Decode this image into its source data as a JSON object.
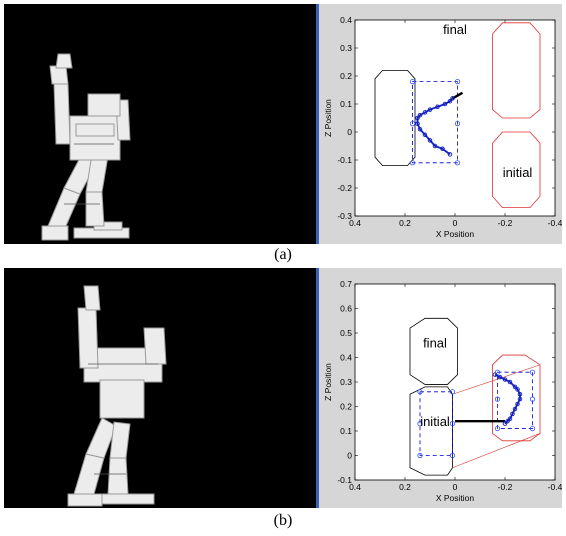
{
  "captions": [
    "(a)",
    "(b)"
  ],
  "chart_data": [
    {
      "type": "scatter",
      "xlabel": "X Position",
      "ylabel": "Z Position",
      "xlim": [
        0.4,
        -0.4
      ],
      "ylim": [
        -0.3,
        0.4
      ],
      "xticks": [
        "0.4",
        "0.2",
        "0",
        "-0.2",
        "-0.4"
      ],
      "yticks": [
        "-0.3",
        "-0.2",
        "-0.1",
        "0",
        "0.1",
        "0.2",
        "0.3",
        "0.4"
      ],
      "annotations": [
        "final",
        "initial"
      ],
      "trajectory": {
        "x": [
          0.02,
          0.05,
          0.08,
          0.1,
          0.12,
          0.14,
          0.15,
          0.15,
          0.14,
          0.12,
          0.1,
          0.07,
          0.04,
          0.02,
          0.01
        ],
        "z": [
          -0.08,
          -0.06,
          -0.05,
          -0.03,
          -0.01,
          0.01,
          0.03,
          0.05,
          0.06,
          0.07,
          0.08,
          0.09,
          0.1,
          0.11,
          0.12
        ]
      },
      "line_segment": {
        "x": [
          0.01,
          -0.03
        ],
        "z": [
          0.12,
          0.14
        ]
      },
      "regions": [
        {
          "label": "",
          "color": "#000000",
          "points": [
            [
              0.29,
              0.22
            ],
            [
              0.19,
              0.22
            ],
            [
              0.16,
              0.19
            ],
            [
              0.16,
              -0.09
            ],
            [
              0.19,
              -0.12
            ],
            [
              0.29,
              -0.12
            ],
            [
              0.32,
              -0.09
            ],
            [
              0.32,
              0.19
            ]
          ]
        },
        {
          "label": "final",
          "color": "#e03030",
          "points": [
            [
              -0.19,
              0.39
            ],
            [
              -0.3,
              0.39
            ],
            [
              -0.34,
              0.35
            ],
            [
              -0.34,
              0.08
            ],
            [
              -0.3,
              0.05
            ],
            [
              -0.19,
              0.05
            ],
            [
              -0.15,
              0.08
            ],
            [
              -0.15,
              0.35
            ]
          ]
        },
        {
          "label": "initial",
          "color": "#e03030",
          "points": [
            [
              -0.19,
              0.0
            ],
            [
              -0.3,
              0.0
            ],
            [
              -0.34,
              -0.04
            ],
            [
              -0.34,
              -0.23
            ],
            [
              -0.3,
              -0.27
            ],
            [
              -0.19,
              -0.27
            ],
            [
              -0.15,
              -0.23
            ],
            [
              -0.15,
              -0.04
            ]
          ]
        }
      ],
      "dashed_box": {
        "color": "#0000d0",
        "x": [
          0.17,
          -0.01
        ],
        "z": [
          -0.11,
          0.18
        ]
      },
      "markers": [
        [
          0.17,
          0.18
        ],
        [
          -0.01,
          0.18
        ],
        [
          0.17,
          -0.11
        ],
        [
          -0.01,
          -0.11
        ],
        [
          0.17,
          0.03
        ],
        [
          -0.01,
          0.03
        ]
      ],
      "colors": {
        "trajectory": "#1020c0",
        "marker": "#3050ff"
      }
    },
    {
      "type": "scatter",
      "xlabel": "X Position",
      "ylabel": "Z Position",
      "xlim": [
        0.4,
        -0.4
      ],
      "ylim": [
        -0.1,
        0.7
      ],
      "xticks": [
        "0.4",
        "0.2",
        "0",
        "-0.2",
        "-0.4"
      ],
      "yticks": [
        "-0.1",
        "0",
        "0.1",
        "0.2",
        "0.3",
        "0.4",
        "0.5",
        "0.6",
        "0.7"
      ],
      "annotations": [
        "final",
        "initial"
      ],
      "trajectory": {
        "x": [
          -0.16,
          -0.18,
          -0.2,
          -0.22,
          -0.24,
          -0.25,
          -0.26,
          -0.26,
          -0.25,
          -0.24,
          -0.23,
          -0.22,
          -0.21,
          -0.2
        ],
        "z": [
          0.33,
          0.32,
          0.31,
          0.3,
          0.28,
          0.27,
          0.25,
          0.23,
          0.21,
          0.19,
          0.17,
          0.15,
          0.14,
          0.13
        ]
      },
      "line_segment": {
        "x": [
          0.0,
          -0.2
        ],
        "z": [
          0.14,
          0.14
        ]
      },
      "regions": [
        {
          "label": "final",
          "color": "#000000",
          "points": [
            [
              0.12,
              0.56
            ],
            [
              0.03,
              0.56
            ],
            [
              -0.01,
              0.52
            ],
            [
              -0.01,
              0.33
            ],
            [
              0.03,
              0.29
            ],
            [
              0.12,
              0.29
            ],
            [
              0.18,
              0.33
            ],
            [
              0.18,
              0.52
            ]
          ]
        },
        {
          "label": "initial",
          "color": "#000000",
          "points": [
            [
              0.12,
              0.28
            ],
            [
              0.03,
              0.28
            ],
            [
              0.01,
              0.25
            ],
            [
              0.01,
              -0.05
            ],
            [
              0.03,
              -0.08
            ],
            [
              0.12,
              -0.08
            ],
            [
              0.18,
              -0.05
            ],
            [
              0.18,
              0.25
            ]
          ]
        },
        {
          "label": "",
          "color": "#e03030",
          "points": [
            [
              -0.28,
              0.41
            ],
            [
              -0.19,
              0.41
            ],
            [
              -0.15,
              0.37
            ],
            [
              -0.15,
              0.09
            ],
            [
              -0.19,
              0.06
            ],
            [
              -0.3,
              0.06
            ],
            [
              -0.34,
              0.09
            ],
            [
              -0.34,
              0.37
            ]
          ]
        }
      ],
      "dashed_box": {
        "color": "#0000d0",
        "x": [
          -0.17,
          -0.31
        ],
        "z": [
          0.11,
          0.34
        ]
      },
      "dashed_box_2": {
        "color": "#0000d0",
        "x": [
          0.14,
          0.01
        ],
        "z": [
          0.0,
          0.26
        ]
      },
      "markers": [
        [
          -0.17,
          0.34
        ],
        [
          -0.31,
          0.34
        ],
        [
          -0.17,
          0.11
        ],
        [
          -0.31,
          0.11
        ],
        [
          -0.17,
          0.23
        ],
        [
          -0.31,
          0.23
        ],
        [
          0.14,
          0.26
        ],
        [
          0.01,
          0.26
        ],
        [
          0.14,
          0.0
        ],
        [
          0.01,
          0.0
        ],
        [
          0.14,
          0.13
        ],
        [
          0.01,
          0.13
        ]
      ],
      "connectors": {
        "color": "#e03030",
        "pairs": [
          [
            [
              0.01,
              0.25
            ],
            [
              -0.34,
              0.37
            ]
          ],
          [
            [
              0.01,
              -0.05
            ],
            [
              -0.34,
              0.09
            ]
          ]
        ]
      },
      "colors": {
        "trajectory": "#1020c0",
        "marker": "#3050ff"
      }
    }
  ]
}
